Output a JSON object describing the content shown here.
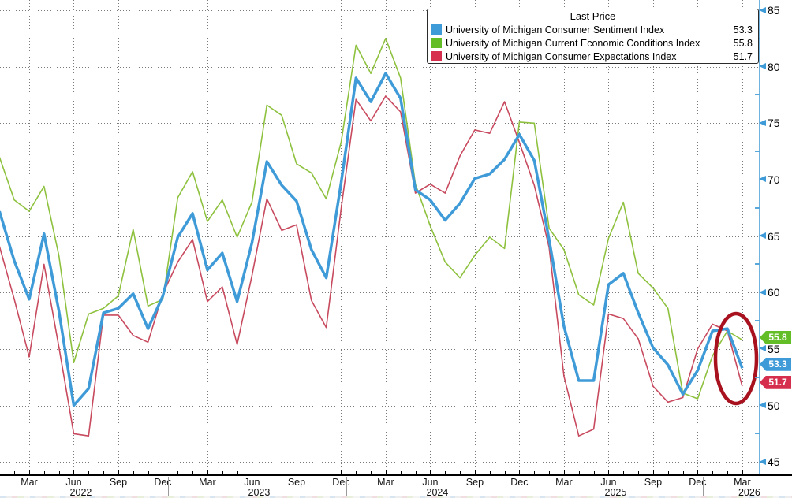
{
  "legend": {
    "title": "Last Price",
    "series": [
      {
        "name": "University of Michigan Consumer Sentiment Index",
        "value": "53.3"
      },
      {
        "name": "University of Michigan Current Economic Conditions Index",
        "value": "55.8"
      },
      {
        "name": "University of Michigan Consumer Expectations Index",
        "value": "51.7"
      }
    ]
  },
  "value_tags": [
    {
      "text": "55.8",
      "value": 55.8,
      "color": "#62bd26"
    },
    {
      "text": "53.3",
      "value": 53.3,
      "color": "#3f9bd8"
    },
    {
      "text": "51.7",
      "value": 51.7,
      "color": "#d62e4d"
    }
  ],
  "colors": {
    "sentiment_line": "#3f9bd8",
    "current_conditions_line": "#8ec13e",
    "expectations_line": "#c84a5f",
    "axis_blue": "#6fb3de",
    "annotation_ellipse": "#a8121f",
    "grid": "#7a7a7a"
  },
  "chart_data": {
    "type": "line",
    "title": "Last Price",
    "grid": "dotted",
    "legend_position": "top-right",
    "annotation": "red ellipse circling the latest drop in all three indexes (Mar 2026)",
    "ylim": [
      45,
      85
    ],
    "y_ticks": [
      85,
      80,
      75,
      70,
      65,
      60,
      55,
      50,
      45
    ],
    "x_tick_labels": [
      {
        "m": 2,
        "label": "Mar"
      },
      {
        "m": 5,
        "label": "Jun"
      },
      {
        "m": 8,
        "label": "Sep"
      },
      {
        "m": 11,
        "label": "Dec"
      },
      {
        "m": 14,
        "label": "Mar"
      },
      {
        "m": 17,
        "label": "Jun"
      },
      {
        "m": 20,
        "label": "Sep"
      },
      {
        "m": 23,
        "label": "Dec"
      },
      {
        "m": 26,
        "label": "Mar"
      },
      {
        "m": 29,
        "label": "Jun"
      },
      {
        "m": 32,
        "label": "Sep"
      },
      {
        "m": 35,
        "label": "Dec"
      },
      {
        "m": 38,
        "label": "Mar"
      },
      {
        "m": 41,
        "label": "Jun"
      },
      {
        "m": 44,
        "label": "Sep"
      },
      {
        "m": 47,
        "label": "Dec"
      },
      {
        "m": 50,
        "label": "Mar"
      }
    ],
    "year_labels": [
      {
        "m": 5,
        "label": "2022"
      },
      {
        "m": 17,
        "label": "2023"
      },
      {
        "m": 29,
        "label": "2024"
      },
      {
        "m": 41,
        "label": "2025"
      },
      {
        "m": 50,
        "label": "2026"
      }
    ],
    "months": [
      "2022-01",
      "2022-02",
      "2022-03",
      "2022-04",
      "2022-05",
      "2022-06",
      "2022-07",
      "2022-08",
      "2022-09",
      "2022-10",
      "2022-11",
      "2022-12",
      "2023-01",
      "2023-02",
      "2023-03",
      "2023-04",
      "2023-05",
      "2023-06",
      "2023-07",
      "2023-08",
      "2023-09",
      "2023-10",
      "2023-11",
      "2023-12",
      "2024-01",
      "2024-02",
      "2024-03",
      "2024-04",
      "2024-05",
      "2024-06",
      "2024-07",
      "2024-08",
      "2024-09",
      "2024-10",
      "2024-11",
      "2024-12",
      "2025-01",
      "2025-02",
      "2025-03",
      "2025-04",
      "2025-05",
      "2025-06",
      "2025-07",
      "2025-08",
      "2025-09",
      "2025-10",
      "2025-11",
      "2025-12",
      "2026-01",
      "2026-02",
      "2026-03"
    ],
    "series": [
      {
        "name": "University of Michigan Consumer Sentiment Index",
        "color": "#3f9bd8",
        "last": 53.3,
        "values": [
          67.2,
          62.8,
          59.4,
          65.2,
          58.4,
          50.0,
          51.5,
          58.2,
          58.6,
          59.9,
          56.8,
          59.7,
          64.9,
          67.0,
          62.0,
          63.5,
          59.2,
          64.4,
          71.6,
          69.5,
          68.1,
          63.8,
          61.3,
          69.7,
          79.0,
          76.9,
          79.4,
          77.2,
          69.1,
          68.2,
          66.4,
          67.9,
          70.1,
          70.5,
          71.8,
          74.0,
          71.7,
          64.7,
          57.0,
          52.2,
          52.2,
          60.7,
          61.7,
          58.2,
          55.1,
          53.6,
          51.0,
          53.1,
          56.6,
          56.8,
          53.3
        ]
      },
      {
        "name": "University of Michigan Current Economic Conditions Index",
        "color": "#8ec13e",
        "last": 55.8,
        "values": [
          72.0,
          68.2,
          67.2,
          69.4,
          63.3,
          53.8,
          58.1,
          58.6,
          59.7,
          65.6,
          58.8,
          59.4,
          68.4,
          70.7,
          66.3,
          68.2,
          64.9,
          68.0,
          76.6,
          75.7,
          71.4,
          70.6,
          68.3,
          73.3,
          81.9,
          79.4,
          82.5,
          79.0,
          69.6,
          65.9,
          62.7,
          61.3,
          63.3,
          64.9,
          63.9,
          75.1,
          75.0,
          65.7,
          63.8,
          59.8,
          58.9,
          64.8,
          68.0,
          61.7,
          60.4,
          58.6,
          51.1,
          50.6,
          54.4,
          56.6,
          55.8
        ]
      },
      {
        "name": "University of Michigan Consumer Expectations Index",
        "color": "#c84a5f",
        "last": 51.7,
        "values": [
          64.1,
          59.4,
          54.3,
          62.5,
          55.2,
          47.5,
          47.3,
          58.0,
          58.0,
          56.2,
          55.6,
          59.9,
          62.7,
          64.7,
          59.2,
          60.5,
          55.4,
          61.5,
          68.3,
          65.5,
          66.0,
          59.3,
          56.9,
          67.4,
          77.1,
          75.2,
          77.4,
          76.0,
          68.8,
          69.6,
          68.8,
          72.1,
          74.4,
          74.1,
          76.9,
          73.3,
          69.5,
          64.0,
          52.6,
          47.3,
          47.9,
          58.1,
          57.7,
          55.9,
          51.7,
          50.3,
          50.7,
          55.0,
          57.2,
          56.6,
          51.7
        ]
      }
    ]
  }
}
